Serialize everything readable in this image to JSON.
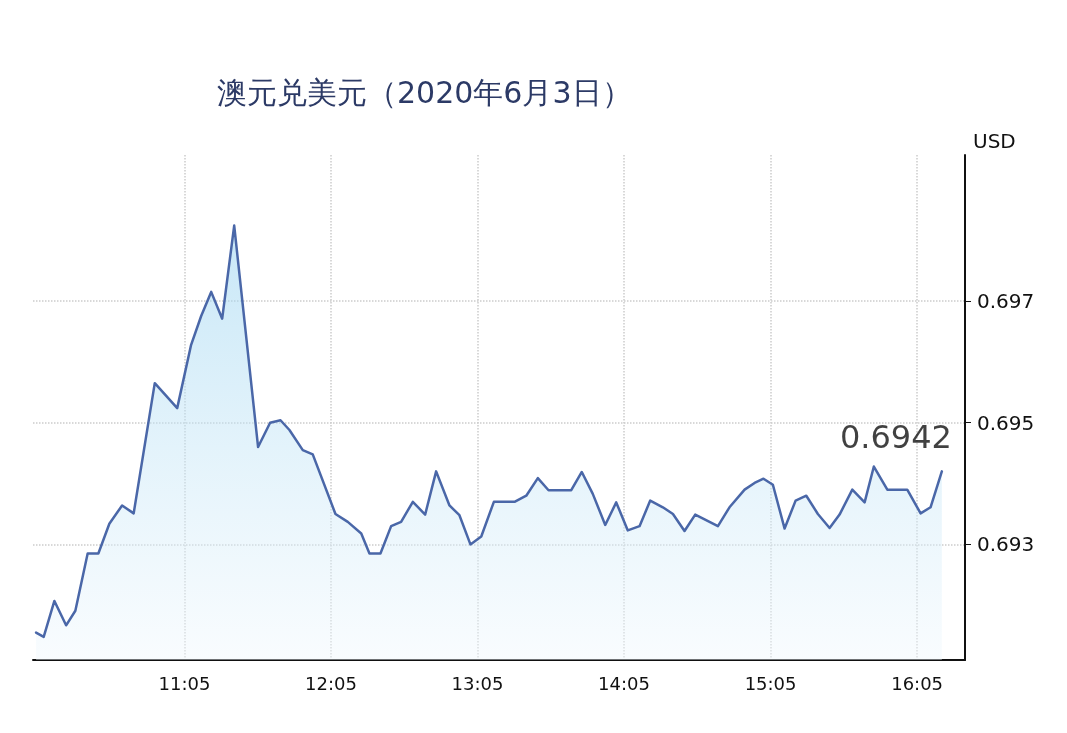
{
  "chart_data": {
    "type": "area",
    "title": "澳元兑美元（2020年6月3日）",
    "ylabel": "USD",
    "color": "#4a67a8",
    "x": [
      10.071,
      10.123,
      10.196,
      10.276,
      10.339,
      10.423,
      10.496,
      10.571,
      10.658,
      10.737,
      10.881,
      11.034,
      11.129,
      11.197,
      11.266,
      11.341,
      11.423,
      11.586,
      11.668,
      11.739,
      11.8,
      11.891,
      11.959,
      12.114,
      12.198,
      12.29,
      12.346,
      12.421,
      12.494,
      12.562,
      12.642,
      12.726,
      12.801,
      12.892,
      12.96,
      13.035,
      13.109,
      13.195,
      13.336,
      13.416,
      13.495,
      13.568,
      13.723,
      13.795,
      13.87,
      13.955,
      14.03,
      14.109,
      14.189,
      14.262,
      14.348,
      14.417,
      14.496,
      14.569,
      14.724,
      14.803,
      14.906,
      14.974,
      15.035,
      15.099,
      15.179,
      15.254,
      15.327,
      15.406,
      15.486,
      15.554,
      15.641,
      15.725,
      15.788,
      15.88,
      16.016,
      16.107,
      16.175,
      16.252
    ],
    "values": [
      0.69155,
      0.69148,
      0.69207,
      0.69167,
      0.69191,
      0.69285,
      0.69285,
      0.69334,
      0.69364,
      0.69351,
      0.69565,
      0.69524,
      0.69628,
      0.69675,
      0.69715,
      0.69671,
      0.69824,
      0.6946,
      0.695,
      0.69504,
      0.69488,
      0.69455,
      0.69448,
      0.6935,
      0.69337,
      0.69318,
      0.69285,
      0.69285,
      0.6933,
      0.69337,
      0.6937,
      0.69349,
      0.6942,
      0.69364,
      0.69348,
      0.693,
      0.69313,
      0.6937,
      0.6937,
      0.6938,
      0.69409,
      0.69389,
      0.69389,
      0.69419,
      0.69383,
      0.69332,
      0.69369,
      0.69323,
      0.6933,
      0.69372,
      0.69361,
      0.6935,
      0.69322,
      0.69349,
      0.6933,
      0.69361,
      0.6939,
      0.69401,
      0.69408,
      0.69398,
      0.69326,
      0.69372,
      0.6938,
      0.6935,
      0.69327,
      0.69349,
      0.6939,
      0.69369,
      0.69428,
      0.6939,
      0.6939,
      0.69351,
      0.69361,
      0.6942
    ],
    "xlim": [
      10.05,
      16.41
    ],
    "xticks": [
      {
        "value": 11.0833,
        "label": "11:05"
      },
      {
        "value": 12.0833,
        "label": "12:05"
      },
      {
        "value": 13.0833,
        "label": "13:05"
      },
      {
        "value": 14.0833,
        "label": "14:05"
      },
      {
        "value": 15.0833,
        "label": "15:05"
      },
      {
        "value": 16.0833,
        "label": "16:05"
      }
    ],
    "ylim": [
      0.6911,
      0.6994
    ],
    "yticks": [
      0.693,
      0.695,
      0.697
    ],
    "grid": true,
    "annotations": [
      {
        "text": "0.6942",
        "x": 16.252,
        "y": 0.6942
      }
    ]
  }
}
